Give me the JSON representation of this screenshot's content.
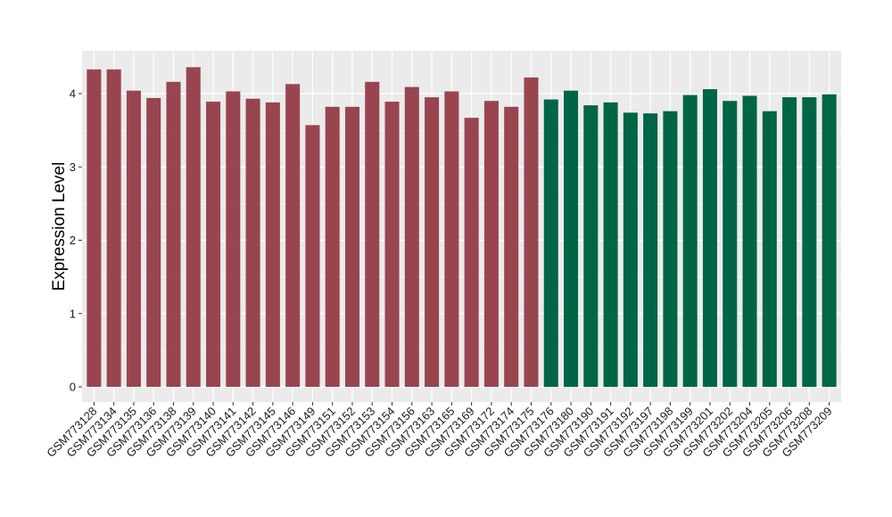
{
  "chart_data": {
    "type": "bar",
    "ylabel": "Expression Level",
    "xlabel": "",
    "ylim": [
      0,
      4.5
    ],
    "yticks": [
      0,
      1,
      2,
      3,
      4
    ],
    "grid": true,
    "background_color": "#EBEBEB",
    "grid_color": "#FFFFFF",
    "group_colors": [
      "#994550",
      "#006546"
    ],
    "categories": [
      "GSM773128",
      "GSM773134",
      "GSM773135",
      "GSM773136",
      "GSM773138",
      "GSM773139",
      "GSM773140",
      "GSM773141",
      "GSM773142",
      "GSM773145",
      "GSM773146",
      "GSM773149",
      "GSM773151",
      "GSM773152",
      "GSM773153",
      "GSM773154",
      "GSM773156",
      "GSM773163",
      "GSM773165",
      "GSM773169",
      "GSM773172",
      "GSM773174",
      "GSM773175",
      "GSM773176",
      "GSM773180",
      "GSM773190",
      "GSM773191",
      "GSM773192",
      "GSM773197",
      "GSM773198",
      "GSM773199",
      "GSM773201",
      "GSM773202",
      "GSM773204",
      "GSM773205",
      "GSM773206",
      "GSM773208",
      "GSM773209"
    ],
    "values": [
      4.33,
      4.33,
      4.04,
      3.94,
      4.16,
      4.36,
      3.89,
      4.03,
      3.93,
      3.88,
      4.13,
      3.57,
      3.82,
      3.82,
      4.16,
      3.89,
      4.09,
      3.95,
      4.03,
      3.67,
      3.9,
      3.82,
      4.22,
      3.92,
      4.04,
      3.84,
      3.88,
      3.74,
      3.73,
      3.76,
      3.98,
      4.06,
      3.9,
      3.97,
      3.76,
      3.95,
      3.95,
      3.99
    ],
    "groups": [
      0,
      0,
      0,
      0,
      0,
      0,
      0,
      0,
      0,
      0,
      0,
      0,
      0,
      0,
      0,
      0,
      0,
      0,
      0,
      0,
      0,
      0,
      0,
      1,
      1,
      1,
      1,
      1,
      1,
      1,
      1,
      1,
      1,
      1,
      1,
      1,
      1,
      1
    ]
  }
}
